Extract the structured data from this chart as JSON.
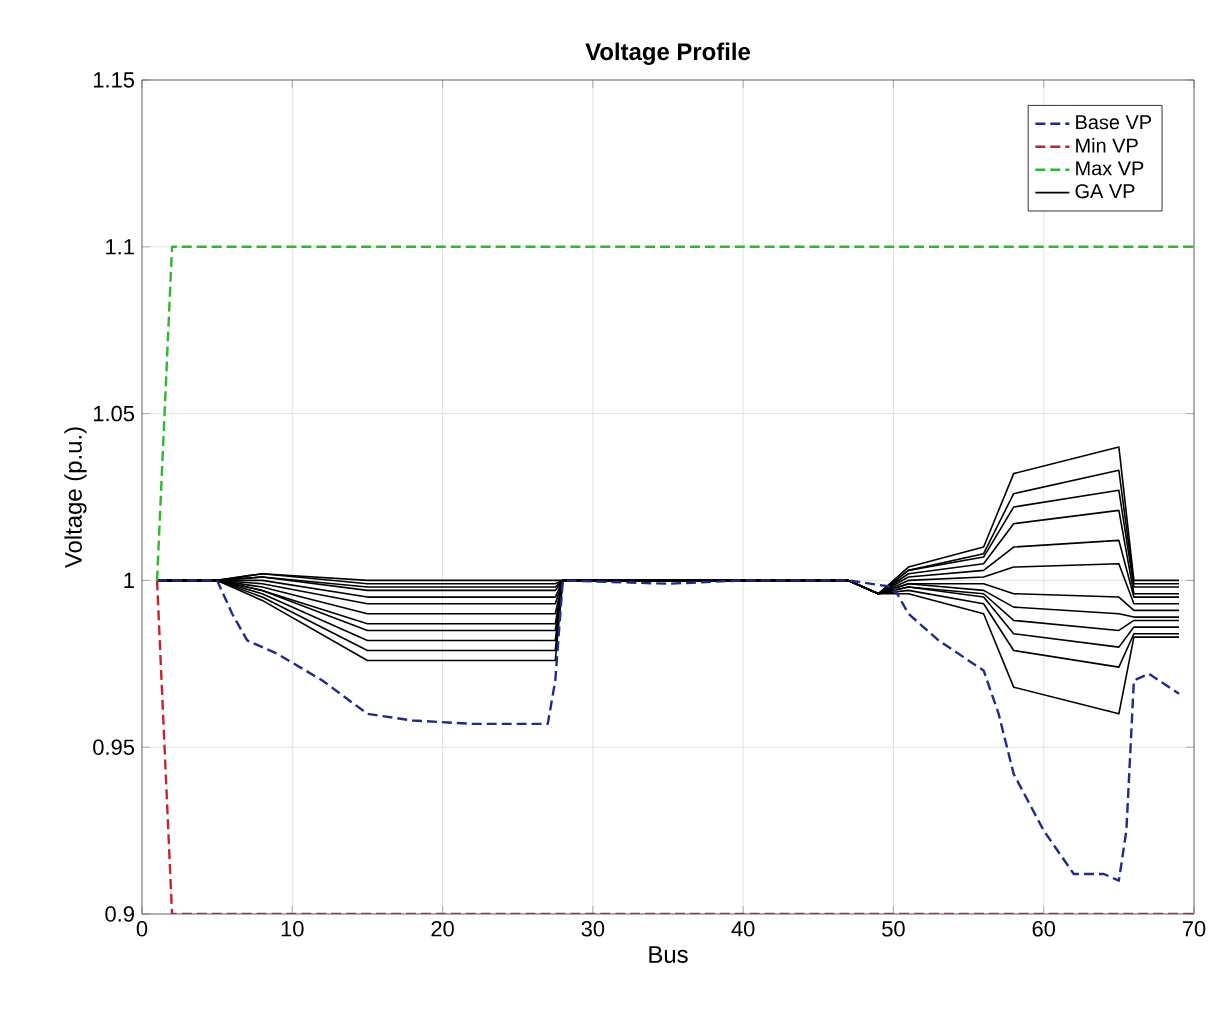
{
  "chart_data": {
    "type": "line",
    "title": "Voltage Profile",
    "xlabel": "Bus",
    "ylabel": "Voltage (p.u.)",
    "xlim": [
      0,
      70
    ],
    "ylim": [
      0.9,
      1.15
    ],
    "xticks": [
      0,
      10,
      20,
      30,
      40,
      50,
      60,
      70
    ],
    "yticks": [
      0.9,
      0.95,
      1,
      1.05,
      1.1,
      1.15
    ],
    "grid": true,
    "legend": "top right",
    "series": [
      {
        "name": "Base VP",
        "color": "#1f2a8a",
        "line_style": "dashed",
        "x": [
          1,
          5,
          6,
          7,
          9,
          12,
          15,
          18,
          22,
          27,
          27.5,
          28,
          35,
          40,
          47,
          50,
          51,
          53,
          56,
          57,
          58,
          60,
          62,
          64,
          65,
          65.5,
          66,
          67,
          69
        ],
        "values": [
          1,
          1,
          0.99,
          0.982,
          0.978,
          0.97,
          0.96,
          0.958,
          0.957,
          0.957,
          0.97,
          1,
          0.999,
          1,
          1,
          0.998,
          0.99,
          0.982,
          0.973,
          0.96,
          0.942,
          0.925,
          0.912,
          0.912,
          0.91,
          0.925,
          0.97,
          0.972,
          0.966
        ]
      },
      {
        "name": "Min VP",
        "color": "#c0272d",
        "line_style": "dashed",
        "x": [
          1,
          2,
          70
        ],
        "values": [
          1,
          0.9,
          0.9
        ]
      },
      {
        "name": "Max VP",
        "color": "#2db82d",
        "line_style": "dashed",
        "x": [
          1,
          2,
          70
        ],
        "values": [
          1,
          1.1,
          1.1
        ]
      },
      {
        "name": "GA VP",
        "color": "#000000",
        "line_style": "solid",
        "x": [
          1,
          5,
          8,
          15,
          27,
          27.5,
          28,
          47,
          49,
          51,
          56,
          58,
          65,
          66,
          69
        ],
        "values": [
          1,
          1,
          1.002,
          1.0,
          1.0,
          1.0,
          1,
          1,
          0.996,
          1.004,
          1.01,
          1.032,
          1.04,
          1.0,
          1.0
        ]
      },
      {
        "color": "#000000",
        "line_style": "solid",
        "x": [
          1,
          5,
          8,
          15,
          27,
          27.5,
          28,
          47,
          49,
          51,
          56,
          58,
          65,
          66,
          69
        ],
        "values": [
          1,
          1,
          1.002,
          0.999,
          0.999,
          0.999,
          1,
          1,
          0.996,
          1.003,
          1.008,
          1.026,
          1.033,
          0.999,
          0.999
        ]
      },
      {
        "color": "#000000",
        "line_style": "solid",
        "x": [
          1,
          5,
          8,
          15,
          27,
          27.5,
          28,
          47,
          49,
          51,
          56,
          58,
          65,
          66,
          69
        ],
        "values": [
          1,
          1,
          1.001,
          0.998,
          0.998,
          0.998,
          1,
          1,
          0.996,
          1.003,
          1.007,
          1.022,
          1.027,
          0.998,
          0.998
        ]
      },
      {
        "color": "#000000",
        "line_style": "solid",
        "x": [
          1,
          5,
          8,
          15,
          27,
          27.5,
          28,
          47,
          49,
          51,
          56,
          58,
          65,
          66,
          69
        ],
        "values": [
          1,
          1,
          1.001,
          0.997,
          0.997,
          0.997,
          1,
          1,
          0.996,
          1.002,
          1.005,
          1.017,
          1.021,
          0.996,
          0.996
        ]
      },
      {
        "color": "#000000",
        "line_style": "solid",
        "x": [
          1,
          5,
          8,
          15,
          27,
          27.5,
          28,
          47,
          49,
          51,
          56,
          58,
          65,
          66,
          69
        ],
        "values": [
          1,
          1,
          1.0,
          0.995,
          0.995,
          0.995,
          1,
          1,
          0.996,
          1.001,
          1.003,
          1.01,
          1.012,
          0.995,
          0.995
        ]
      },
      {
        "color": "#000000",
        "line_style": "solid",
        "x": [
          1,
          5,
          8,
          15,
          27,
          27.5,
          28,
          47,
          49,
          51,
          56,
          58,
          65,
          66,
          69
        ],
        "values": [
          1,
          1,
          0.999,
          0.993,
          0.993,
          0.993,
          1,
          1,
          0.996,
          1.0,
          1.001,
          1.004,
          1.005,
          0.993,
          0.993
        ]
      },
      {
        "color": "#000000",
        "line_style": "solid",
        "x": [
          1,
          5,
          8,
          15,
          27,
          27.5,
          28,
          47,
          49,
          51,
          56,
          58,
          65,
          66,
          69
        ],
        "values": [
          1,
          1,
          0.998,
          0.99,
          0.99,
          0.99,
          1,
          1,
          0.996,
          0.999,
          0.999,
          0.996,
          0.995,
          0.991,
          0.991
        ]
      },
      {
        "color": "#000000",
        "line_style": "solid",
        "x": [
          1,
          5,
          8,
          15,
          27,
          27.5,
          28,
          47,
          49,
          51,
          56,
          58,
          65,
          66,
          69
        ],
        "values": [
          1,
          1,
          0.997,
          0.987,
          0.987,
          0.987,
          1,
          1,
          0.996,
          0.999,
          0.997,
          0.992,
          0.99,
          0.989,
          0.989
        ]
      },
      {
        "color": "#000000",
        "line_style": "solid",
        "x": [
          1,
          5,
          8,
          15,
          27,
          27.5,
          28,
          47,
          49,
          51,
          56,
          58,
          65,
          66,
          69
        ],
        "values": [
          1,
          1,
          0.997,
          0.985,
          0.985,
          0.985,
          1,
          1,
          0.996,
          0.998,
          0.996,
          0.988,
          0.985,
          0.988,
          0.988
        ]
      },
      {
        "color": "#000000",
        "line_style": "solid",
        "x": [
          1,
          5,
          8,
          15,
          27,
          27.5,
          28,
          47,
          49,
          51,
          56,
          58,
          65,
          66,
          69
        ],
        "values": [
          1,
          1,
          0.996,
          0.982,
          0.982,
          0.982,
          1,
          1,
          0.996,
          0.998,
          0.995,
          0.984,
          0.98,
          0.986,
          0.986
        ]
      },
      {
        "color": "#000000",
        "line_style": "solid",
        "x": [
          1,
          5,
          8,
          15,
          27,
          27.5,
          28,
          47,
          49,
          51,
          56,
          58,
          65,
          66,
          69
        ],
        "values": [
          1,
          1,
          0.995,
          0.979,
          0.979,
          0.979,
          1,
          1,
          0.996,
          0.997,
          0.993,
          0.979,
          0.974,
          0.984,
          0.984
        ]
      },
      {
        "color": "#000000",
        "line_style": "solid",
        "x": [
          1,
          5,
          8,
          15,
          27,
          27.5,
          28,
          47,
          49,
          51,
          56,
          58,
          65,
          66,
          69
        ],
        "values": [
          1,
          1,
          0.994,
          0.976,
          0.976,
          0.976,
          1,
          1,
          0.996,
          0.996,
          0.99,
          0.968,
          0.96,
          0.983,
          0.983
        ]
      }
    ]
  }
}
